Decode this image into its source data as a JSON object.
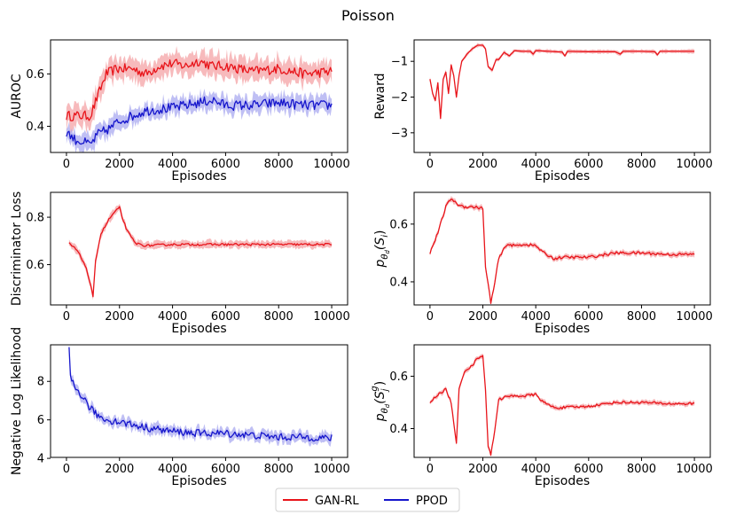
{
  "title": "Poisson",
  "colors": {
    "gan": "#e8141a",
    "gan_fill": "#f4a3a6",
    "ppod": "#1616cc",
    "ppod_fill": "#a9a9f0"
  },
  "legend": {
    "items": [
      {
        "label": "GAN-RL",
        "color": "#e8141a"
      },
      {
        "label": "PPOD",
        "color": "#1616cc"
      }
    ],
    "placement": "bottom-center"
  },
  "chart_data": [
    {
      "type": "line",
      "xlabel": "Episodes",
      "ylabel": "AUROC",
      "xlim": [
        -600,
        10600
      ],
      "ylim": [
        0.3,
        0.73
      ],
      "xticks": [
        0,
        2000,
        4000,
        6000,
        8000,
        10000
      ],
      "yticks": [
        0.4,
        0.6
      ],
      "ytick_labels": [
        "0.4",
        "0.6"
      ],
      "series": [
        {
          "name": "GAN-RL",
          "color": "gan",
          "noise": 0.012,
          "band": 0.04,
          "points": [
            [
              0,
              0.44
            ],
            [
              300,
              0.44
            ],
            [
              600,
              0.44
            ],
            [
              900,
              0.44
            ],
            [
              1200,
              0.52
            ],
            [
              1500,
              0.6
            ],
            [
              1900,
              0.62
            ],
            [
              2500,
              0.62
            ],
            [
              3000,
              0.6
            ],
            [
              3500,
              0.63
            ],
            [
              4000,
              0.64
            ],
            [
              4500,
              0.63
            ],
            [
              5000,
              0.65
            ],
            [
              5500,
              0.63
            ],
            [
              6000,
              0.63
            ],
            [
              7000,
              0.61
            ],
            [
              8000,
              0.62
            ],
            [
              9000,
              0.6
            ],
            [
              10000,
              0.61
            ]
          ]
        },
        {
          "name": "PPOD",
          "color": "ppod",
          "noise": 0.012,
          "band": 0.03,
          "points": [
            [
              0,
              0.38
            ],
            [
              300,
              0.35
            ],
            [
              600,
              0.34
            ],
            [
              900,
              0.33
            ],
            [
              1200,
              0.37
            ],
            [
              1600,
              0.39
            ],
            [
              2000,
              0.42
            ],
            [
              2500,
              0.44
            ],
            [
              3000,
              0.46
            ],
            [
              4000,
              0.47
            ],
            [
              5000,
              0.49
            ],
            [
              5500,
              0.5
            ],
            [
              6000,
              0.48
            ],
            [
              7000,
              0.48
            ],
            [
              8000,
              0.49
            ],
            [
              9000,
              0.48
            ],
            [
              10000,
              0.48
            ]
          ]
        }
      ]
    },
    {
      "type": "line",
      "xlabel": "Episodes",
      "ylabel": "Reward",
      "xlim": [
        -600,
        10600
      ],
      "ylim": [
        -3.55,
        -0.4
      ],
      "xticks": [
        0,
        2000,
        4000,
        6000,
        8000,
        10000
      ],
      "yticks": [
        -3,
        -2,
        -1
      ],
      "ytick_labels": [
        "−3",
        "−2",
        "−1"
      ],
      "series": [
        {
          "name": "GAN-RL",
          "color": "gan",
          "noise": 0.0,
          "band": 0.05,
          "points": [
            [
              0,
              -1.5
            ],
            [
              100,
              -1.9
            ],
            [
              200,
              -2.1
            ],
            [
              300,
              -1.6
            ],
            [
              400,
              -2.6
            ],
            [
              500,
              -1.5
            ],
            [
              600,
              -1.3
            ],
            [
              700,
              -1.9
            ],
            [
              800,
              -1.1
            ],
            [
              900,
              -1.4
            ],
            [
              1000,
              -2.0
            ],
            [
              1100,
              -1.4
            ],
            [
              1200,
              -1.0
            ],
            [
              1400,
              -0.8
            ],
            [
              1600,
              -0.65
            ],
            [
              1800,
              -0.55
            ],
            [
              2000,
              -0.55
            ],
            [
              2100,
              -0.65
            ],
            [
              2200,
              -1.15
            ],
            [
              2350,
              -1.25
            ],
            [
              2500,
              -0.95
            ],
            [
              2600,
              -0.95
            ],
            [
              2800,
              -0.75
            ],
            [
              3000,
              -0.85
            ],
            [
              3200,
              -0.7
            ],
            [
              3500,
              -0.72
            ],
            [
              3800,
              -0.72
            ],
            [
              3900,
              -0.8
            ],
            [
              4000,
              -0.7
            ],
            [
              4500,
              -0.72
            ],
            [
              5000,
              -0.74
            ],
            [
              5100,
              -0.85
            ],
            [
              5200,
              -0.72
            ],
            [
              6000,
              -0.73
            ],
            [
              7000,
              -0.73
            ],
            [
              7200,
              -0.8
            ],
            [
              7300,
              -0.72
            ],
            [
              8000,
              -0.72
            ],
            [
              8500,
              -0.73
            ],
            [
              8600,
              -0.82
            ],
            [
              8700,
              -0.72
            ],
            [
              10000,
              -0.72
            ]
          ]
        }
      ]
    },
    {
      "type": "line",
      "xlabel": "Episodes",
      "ylabel": "Discriminator Loss",
      "xlim": [
        -600,
        10600
      ],
      "ylim": [
        0.43,
        0.905
      ],
      "xticks": [
        0,
        2000,
        4000,
        6000,
        8000,
        10000
      ],
      "yticks": [
        0.6,
        0.8
      ],
      "ytick_labels": [
        "0.6",
        "0.8"
      ],
      "series": [
        {
          "name": "GAN-RL",
          "color": "gan",
          "noise": 0.003,
          "band": 0.015,
          "points": [
            [
              100,
              0.69
            ],
            [
              400,
              0.66
            ],
            [
              700,
              0.6
            ],
            [
              900,
              0.52
            ],
            [
              1000,
              0.46
            ],
            [
              1100,
              0.62
            ],
            [
              1300,
              0.73
            ],
            [
              1600,
              0.79
            ],
            [
              1800,
              0.82
            ],
            [
              2000,
              0.84
            ],
            [
              2100,
              0.8
            ],
            [
              2300,
              0.74
            ],
            [
              2600,
              0.69
            ],
            [
              3000,
              0.68
            ],
            [
              4000,
              0.685
            ],
            [
              6000,
              0.685
            ],
            [
              8000,
              0.685
            ],
            [
              10000,
              0.685
            ]
          ]
        }
      ]
    },
    {
      "type": "line",
      "xlabel": "Episodes",
      "ylabel": "p_{θ_d}(S_i)",
      "xlim": [
        -600,
        10600
      ],
      "ylim": [
        0.32,
        0.71
      ],
      "xticks": [
        0,
        2000,
        4000,
        6000,
        8000,
        10000
      ],
      "yticks": [
        0.4,
        0.6
      ],
      "ytick_labels": [
        "0.4",
        "0.6"
      ],
      "series": [
        {
          "name": "GAN-RL",
          "color": "gan",
          "noise": 0.003,
          "band": 0.008,
          "points": [
            [
              0,
              0.5
            ],
            [
              300,
              0.57
            ],
            [
              600,
              0.66
            ],
            [
              800,
              0.69
            ],
            [
              1000,
              0.67
            ],
            [
              1300,
              0.66
            ],
            [
              1600,
              0.66
            ],
            [
              2000,
              0.655
            ],
            [
              2100,
              0.45
            ],
            [
              2300,
              0.33
            ],
            [
              2400,
              0.37
            ],
            [
              2600,
              0.48
            ],
            [
              2900,
              0.53
            ],
            [
              3200,
              0.525
            ],
            [
              3600,
              0.53
            ],
            [
              4000,
              0.525
            ],
            [
              4300,
              0.5
            ],
            [
              4700,
              0.48
            ],
            [
              5000,
              0.485
            ],
            [
              6000,
              0.485
            ],
            [
              7000,
              0.5
            ],
            [
              8000,
              0.5
            ],
            [
              9000,
              0.495
            ],
            [
              10000,
              0.495
            ]
          ]
        }
      ]
    },
    {
      "type": "line",
      "xlabel": "Episodes",
      "ylabel": "Negative Log Likelihood",
      "xlim": [
        -600,
        10600
      ],
      "ylim": [
        4.05,
        9.9
      ],
      "xticks": [
        0,
        2000,
        4000,
        6000,
        8000,
        10000
      ],
      "yticks": [
        4,
        6,
        8
      ],
      "ytick_labels": [
        "4",
        "6",
        "8"
      ],
      "series": [
        {
          "name": "PPOD",
          "color": "ppod",
          "noise": 0.12,
          "band": 0.25,
          "points": [
            [
              100,
              9.6
            ],
            [
              150,
              8.2
            ],
            [
              300,
              7.7
            ],
            [
              500,
              7.4
            ],
            [
              700,
              7.0
            ],
            [
              900,
              6.6
            ],
            [
              1200,
              6.2
            ],
            [
              1500,
              6.0
            ],
            [
              2000,
              5.9
            ],
            [
              3000,
              5.6
            ],
            [
              4000,
              5.4
            ],
            [
              5000,
              5.3
            ],
            [
              6000,
              5.3
            ],
            [
              7000,
              5.2
            ],
            [
              8000,
              5.1
            ],
            [
              9000,
              5.1
            ],
            [
              10000,
              5.05
            ]
          ]
        }
      ]
    },
    {
      "type": "line",
      "xlabel": "Episodes",
      "ylabel": "p_{θ_d}(S_j^g)",
      "xlim": [
        -600,
        10600
      ],
      "ylim": [
        0.29,
        0.72
      ],
      "xticks": [
        0,
        2000,
        4000,
        6000,
        8000,
        10000
      ],
      "yticks": [
        0.4,
        0.6
      ],
      "ytick_labels": [
        "0.4",
        "0.6"
      ],
      "series": [
        {
          "name": "GAN-RL",
          "color": "gan",
          "noise": 0.003,
          "band": 0.008,
          "points": [
            [
              0,
              0.5
            ],
            [
              300,
              0.53
            ],
            [
              600,
              0.55
            ],
            [
              800,
              0.5
            ],
            [
              950,
              0.38
            ],
            [
              1000,
              0.34
            ],
            [
              1100,
              0.55
            ],
            [
              1300,
              0.62
            ],
            [
              1600,
              0.64
            ],
            [
              1800,
              0.67
            ],
            [
              2000,
              0.68
            ],
            [
              2100,
              0.55
            ],
            [
              2200,
              0.33
            ],
            [
              2300,
              0.3
            ],
            [
              2400,
              0.36
            ],
            [
              2600,
              0.51
            ],
            [
              2800,
              0.52
            ],
            [
              3200,
              0.525
            ],
            [
              3600,
              0.525
            ],
            [
              4000,
              0.53
            ],
            [
              4300,
              0.5
            ],
            [
              4700,
              0.48
            ],
            [
              5000,
              0.48
            ],
            [
              6000,
              0.485
            ],
            [
              7000,
              0.5
            ],
            [
              8000,
              0.5
            ],
            [
              9000,
              0.495
            ],
            [
              10000,
              0.495
            ]
          ]
        }
      ]
    }
  ]
}
